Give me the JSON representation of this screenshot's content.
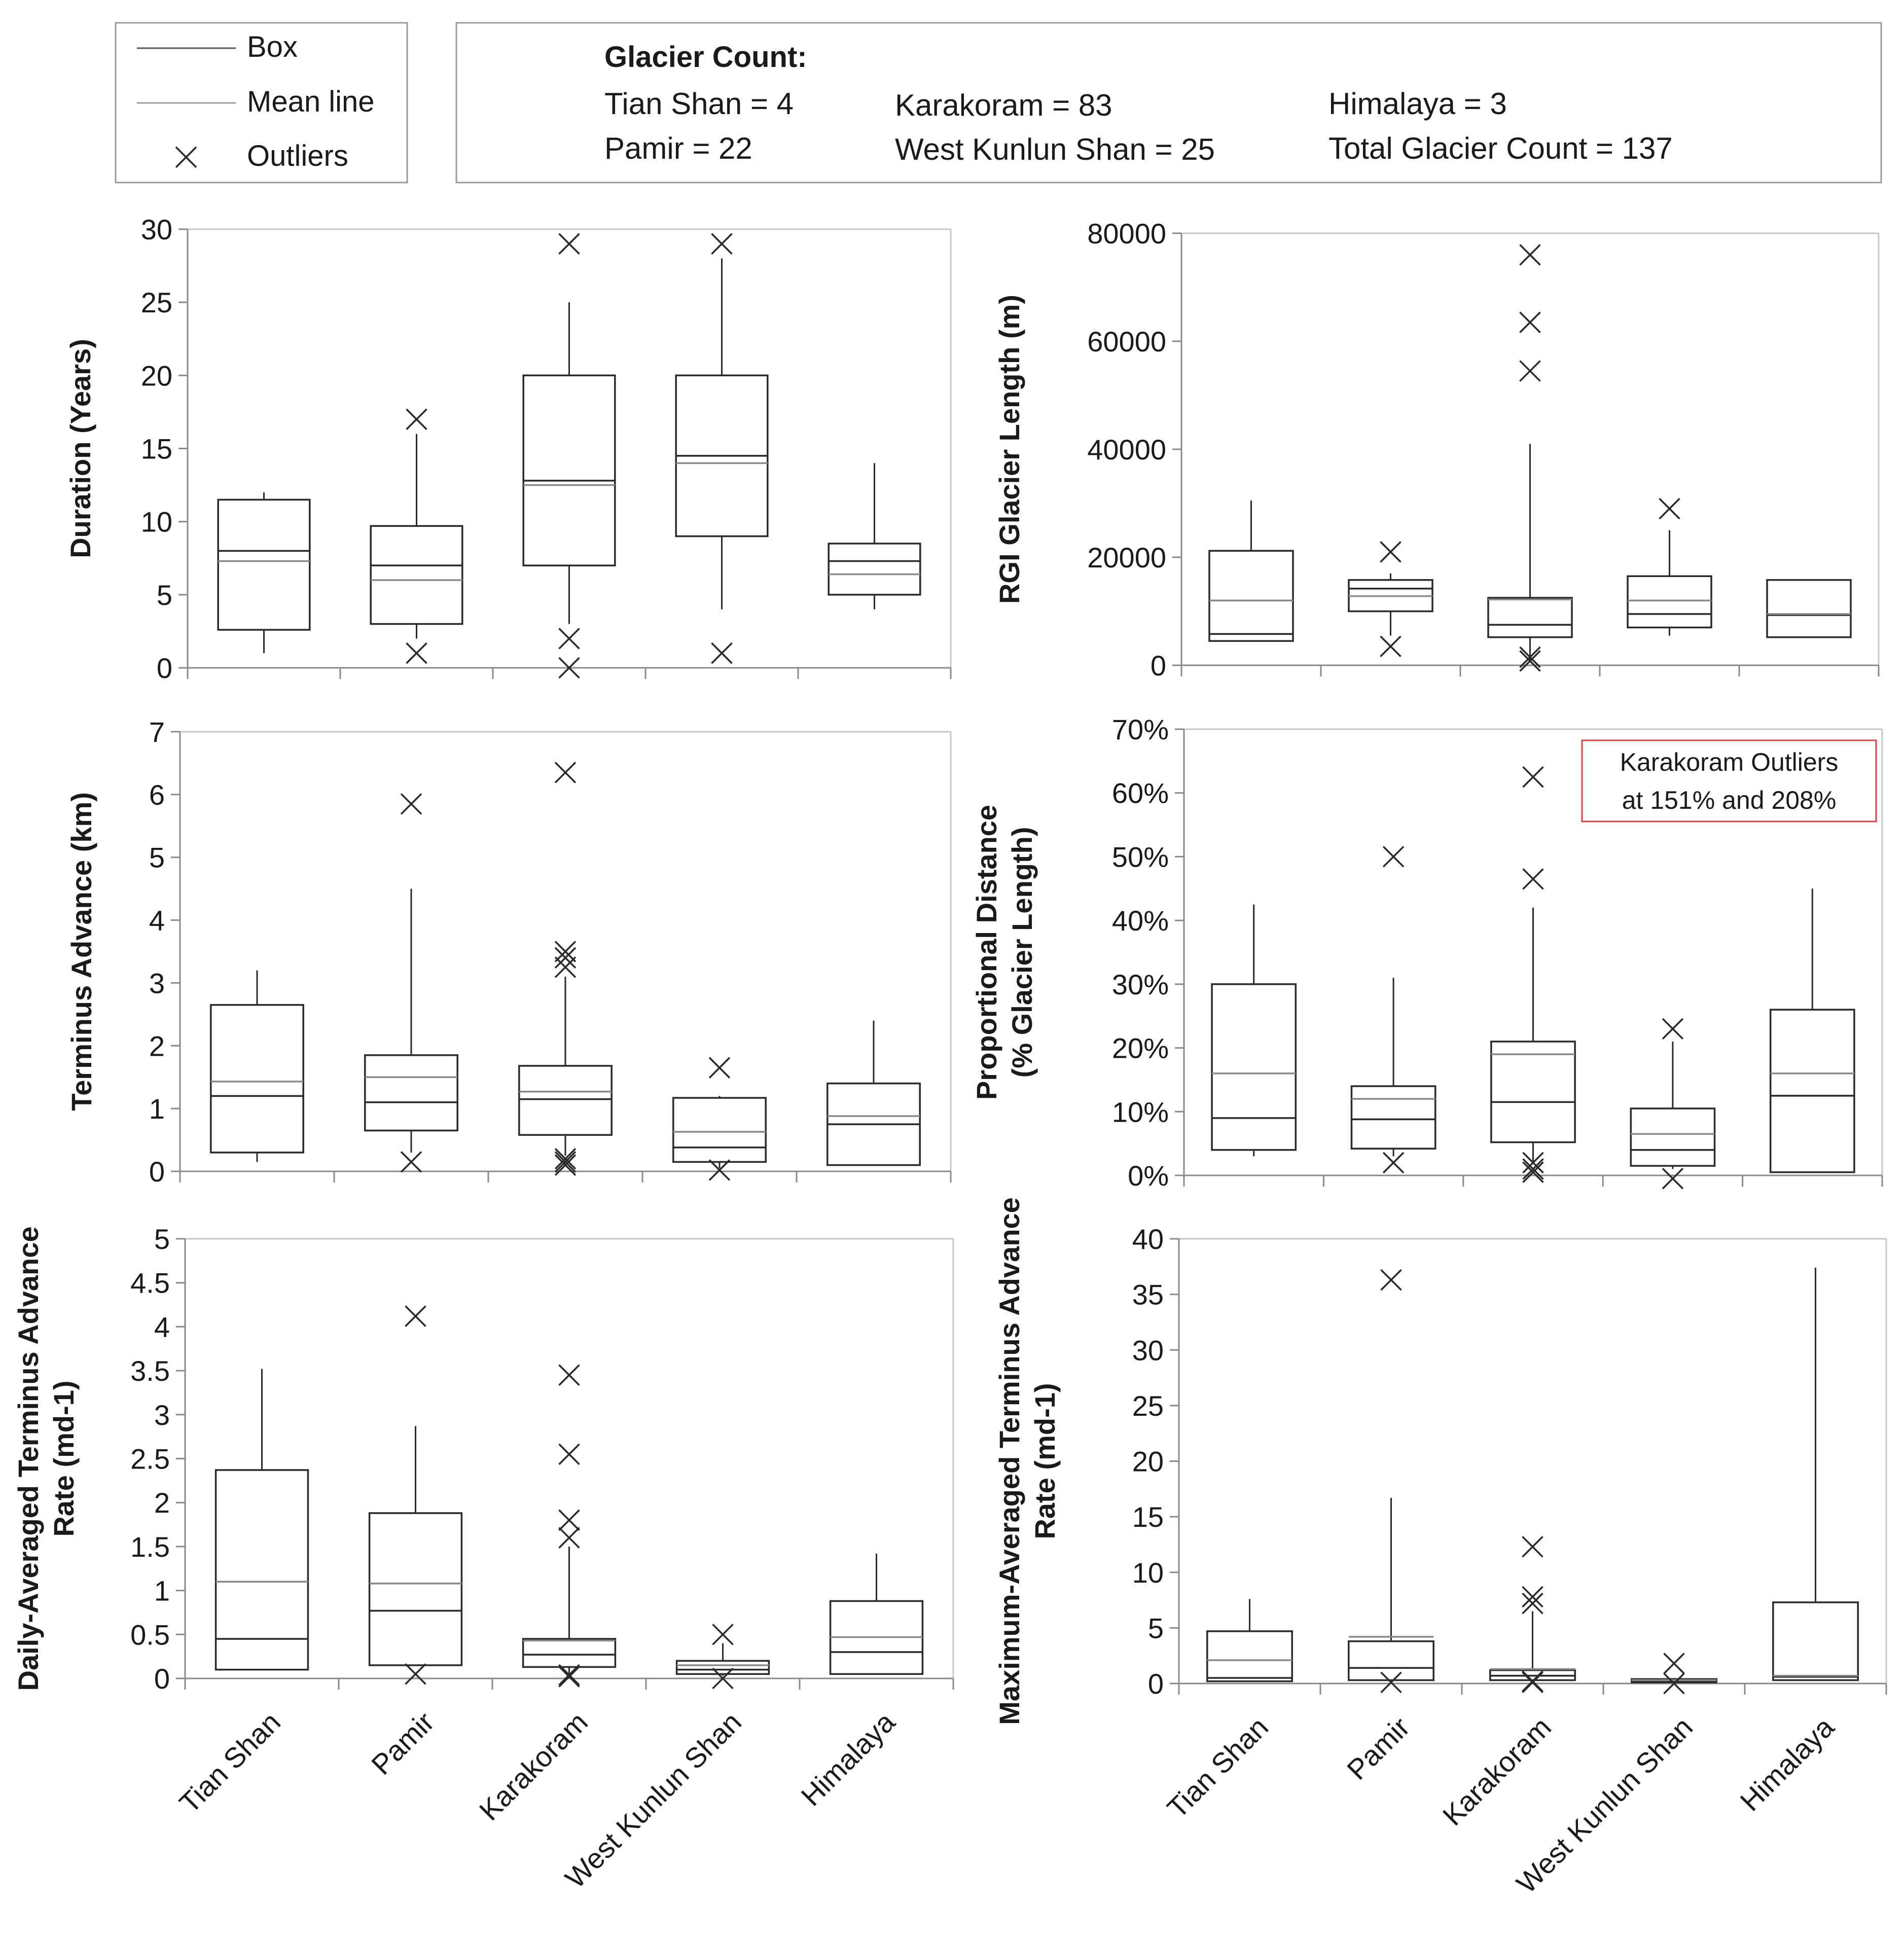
{
  "legend": {
    "box_label": "Box",
    "mean_label": "Mean line",
    "outliers_label": "Outliers"
  },
  "counts": {
    "heading": "Glacier Count:",
    "tian_shan": "Tian Shan = 4",
    "karakoram": "Karakoram = 83",
    "himalaya": "Himalaya = 3",
    "pamir": "Pamir = 22",
    "west_kunlun": "West Kunlun Shan = 25",
    "total": "Total Glacier Count = 137"
  },
  "annotation": {
    "line1": "Karakoram Outliers",
    "line2": "at 151% and 208%"
  },
  "colors": {
    "box": "#2a2a2a",
    "mean": "#8a8a8a",
    "annotation_border": "#e04040"
  },
  "chart_data": [
    {
      "id": "duration",
      "type": "box",
      "ylabel": [
        "Duration (Years)"
      ],
      "ylim": [
        0,
        30
      ],
      "ticks": [
        0,
        5,
        10,
        15,
        20,
        25,
        30
      ],
      "tick_labels": [
        "0",
        "5",
        "10",
        "15",
        "20",
        "25",
        "30"
      ],
      "categories": [
        "Tian Shan",
        "Pamir",
        "Karakoram",
        "West Kunlun Shan",
        "Himalaya"
      ],
      "boxes": [
        {
          "min": 1,
          "q1": 2.6,
          "median": 8,
          "mean": 7.3,
          "q3": 11.5,
          "max": 12,
          "outliers": []
        },
        {
          "min": 2,
          "q1": 3,
          "median": 7,
          "mean": 6,
          "q3": 9.7,
          "max": 16,
          "outliers": [
            17,
            1
          ]
        },
        {
          "min": 3,
          "q1": 7,
          "median": 12.8,
          "mean": 12.5,
          "q3": 20,
          "max": 25,
          "outliers": [
            29,
            2,
            0
          ]
        },
        {
          "min": 4,
          "q1": 9,
          "median": 14.5,
          "mean": 14,
          "q3": 20,
          "max": 28,
          "outliers": [
            29,
            1
          ]
        },
        {
          "min": 4,
          "q1": 5,
          "median": 7.3,
          "mean": 6.4,
          "q3": 8.5,
          "max": 14,
          "outliers": []
        }
      ]
    },
    {
      "id": "rgi_length",
      "type": "box",
      "ylabel": [
        "RGI Glacier Length (m)"
      ],
      "ylim": [
        0,
        80000
      ],
      "ticks": [
        0,
        20000,
        40000,
        60000,
        80000
      ],
      "tick_labels": [
        "0",
        "20000",
        "40000",
        "60000",
        "80000"
      ],
      "categories": [
        "Tian Shan",
        "Pamir",
        "Karakoram",
        "West Kunlun Shan",
        "Himalaya"
      ],
      "boxes": [
        {
          "min": 4500,
          "q1": 4500,
          "median": 5800,
          "mean": 12000,
          "q3": 21200,
          "max": 30500,
          "outliers": []
        },
        {
          "min": 5500,
          "q1": 10000,
          "median": 14200,
          "mean": 12800,
          "q3": 15800,
          "max": 17000,
          "outliers": [
            21000,
            3500
          ]
        },
        {
          "min": 500,
          "q1": 5200,
          "median": 7500,
          "mean": 12200,
          "q3": 12500,
          "max": 41000,
          "outliers": [
            76000,
            63500,
            54500,
            1500,
            800
          ]
        },
        {
          "min": 5500,
          "q1": 7000,
          "median": 9500,
          "mean": 12000,
          "q3": 16500,
          "max": 25000,
          "outliers": [
            29000
          ]
        },
        {
          "min": 5200,
          "q1": 5200,
          "median": 9300,
          "mean": 9500,
          "q3": 15800,
          "max": 15800,
          "outliers": []
        }
      ]
    },
    {
      "id": "terminus_advance",
      "type": "box",
      "ylabel": [
        "Terminus Advance (km)"
      ],
      "ylim": [
        0,
        7
      ],
      "ticks": [
        0,
        1,
        2,
        3,
        4,
        5,
        6,
        7
      ],
      "tick_labels": [
        "0",
        "1",
        "2",
        "3",
        "4",
        "5",
        "6",
        "7"
      ],
      "categories": [
        "Tian Shan",
        "Pamir",
        "Karakoram",
        "West Kunlun Shan",
        "Himalaya"
      ],
      "boxes": [
        {
          "min": 0.15,
          "q1": 0.3,
          "median": 1.2,
          "mean": 1.43,
          "q3": 2.65,
          "max": 3.2,
          "outliers": []
        },
        {
          "min": 0.3,
          "q1": 0.65,
          "median": 1.1,
          "mean": 1.5,
          "q3": 1.85,
          "max": 4.5,
          "outliers": [
            5.85,
            0.15
          ]
        },
        {
          "min": 0.25,
          "q1": 0.58,
          "median": 1.15,
          "mean": 1.27,
          "q3": 1.68,
          "max": 3.1,
          "outliers": [
            6.35,
            3.5,
            3.4,
            3.25,
            0.2,
            0.15,
            0.1
          ]
        },
        {
          "min": 0.05,
          "q1": 0.15,
          "median": 0.38,
          "mean": 0.63,
          "q3": 1.17,
          "max": 1.2,
          "outliers": [
            1.65,
            0.02
          ]
        },
        {
          "min": 0.1,
          "q1": 0.1,
          "median": 0.75,
          "mean": 0.88,
          "q3": 1.4,
          "max": 2.4,
          "outliers": []
        }
      ]
    },
    {
      "id": "proportional_distance",
      "type": "box",
      "ylabel": [
        "Proportional Distance",
        "(% Glacier Length)"
      ],
      "ylim": [
        0,
        70
      ],
      "ticks": [
        0,
        10,
        20,
        30,
        40,
        50,
        60,
        70
      ],
      "tick_labels": [
        "0%",
        "10%",
        "20%",
        "30%",
        "40%",
        "50%",
        "60%",
        "70%"
      ],
      "categories": [
        "Tian Shan",
        "Pamir",
        "Karakoram",
        "West Kunlun Shan",
        "Himalaya"
      ],
      "boxes": [
        {
          "min": 3,
          "q1": 4,
          "median": 9,
          "mean": 16,
          "q3": 30,
          "max": 42.5,
          "outliers": []
        },
        {
          "min": 3,
          "q1": 4.2,
          "median": 8.8,
          "mean": 12,
          "q3": 14,
          "max": 31,
          "outliers": [
            50,
            2
          ]
        },
        {
          "min": 2,
          "q1": 5.2,
          "median": 11.5,
          "mean": 19,
          "q3": 21,
          "max": 42,
          "outliers": [
            62.5,
            46.5,
            2,
            1,
            0.5
          ]
        },
        {
          "min": 1,
          "q1": 1.5,
          "median": 4,
          "mean": 6.5,
          "q3": 10.5,
          "max": 21,
          "outliers": [
            23,
            -0.5
          ]
        },
        {
          "min": 0.5,
          "q1": 0.5,
          "median": 12.5,
          "mean": 16,
          "q3": 26,
          "max": 45,
          "outliers": []
        }
      ]
    },
    {
      "id": "daily_rate",
      "type": "box",
      "ylabel": [
        "Daily-Averaged Terminus Advance",
        "Rate (md-1)"
      ],
      "ylim": [
        0,
        5
      ],
      "ticks": [
        0,
        0.5,
        1,
        1.5,
        2,
        2.5,
        3,
        3.5,
        4,
        4.5,
        5
      ],
      "tick_labels": [
        "0",
        "0.5",
        "1",
        "1.5",
        "2",
        "2.5",
        "3",
        "3.5",
        "4",
        "4.5",
        "5"
      ],
      "categories": [
        "Tian Shan",
        "Pamir",
        "Karakoram",
        "West Kunlun Shan",
        "Himalaya"
      ],
      "boxes": [
        {
          "min": 0.1,
          "q1": 0.1,
          "median": 0.45,
          "mean": 1.1,
          "q3": 2.37,
          "max": 3.52,
          "outliers": []
        },
        {
          "min": 0.15,
          "q1": 0.15,
          "median": 0.77,
          "mean": 1.08,
          "q3": 1.88,
          "max": 2.87,
          "outliers": [
            4.12,
            0.05
          ]
        },
        {
          "min": 0.05,
          "q1": 0.13,
          "median": 0.27,
          "mean": 0.43,
          "q3": 0.45,
          "max": 1.5,
          "outliers": [
            3.45,
            2.55,
            1.8,
            1.6,
            0.04,
            0.02
          ]
        },
        {
          "min": 0.03,
          "q1": 0.05,
          "median": 0.1,
          "mean": 0.15,
          "q3": 0.2,
          "max": 0.4,
          "outliers": [
            0.5,
            0.0
          ]
        },
        {
          "min": 0.04,
          "q1": 0.05,
          "median": 0.3,
          "mean": 0.47,
          "q3": 0.88,
          "max": 1.42,
          "outliers": []
        }
      ]
    },
    {
      "id": "max_rate",
      "type": "box",
      "ylabel": [
        "Maximum-Averaged Terminus Advance",
        "Rate (md-1)"
      ],
      "ylim": [
        0,
        40
      ],
      "ticks": [
        0,
        5,
        10,
        15,
        20,
        25,
        30,
        35,
        40
      ],
      "tick_labels": [
        "0",
        "5",
        "10",
        "15",
        "20",
        "25",
        "30",
        "35",
        "40"
      ],
      "categories": [
        "Tian Shan",
        "Pamir",
        "Karakoram",
        "West Kunlun Shan",
        "Himalaya"
      ],
      "boxes": [
        {
          "min": 0.2,
          "q1": 0.2,
          "median": 0.5,
          "mean": 2.1,
          "q3": 4.7,
          "max": 7.6,
          "outliers": []
        },
        {
          "min": 0.3,
          "q1": 0.3,
          "median": 1.4,
          "mean": 4.2,
          "q3": 3.8,
          "max": 16.7,
          "outliers": [
            36.3,
            0.1
          ]
        },
        {
          "min": 0.1,
          "q1": 0.3,
          "median": 0.7,
          "mean": 1.3,
          "q3": 1.2,
          "max": 6.5,
          "outliers": [
            12.3,
            7.8,
            7.2,
            0.2,
            0.1
          ]
        },
        {
          "min": 0.05,
          "q1": 0.1,
          "median": 0.2,
          "mean": 0.3,
          "q3": 0.4,
          "max": 0.5,
          "outliers": [
            1.8,
            0.0
          ]
        },
        {
          "min": 0.3,
          "q1": 0.3,
          "median": 0.6,
          "mean": 0.7,
          "q3": 7.3,
          "max": 37.4,
          "outliers": []
        }
      ]
    }
  ]
}
